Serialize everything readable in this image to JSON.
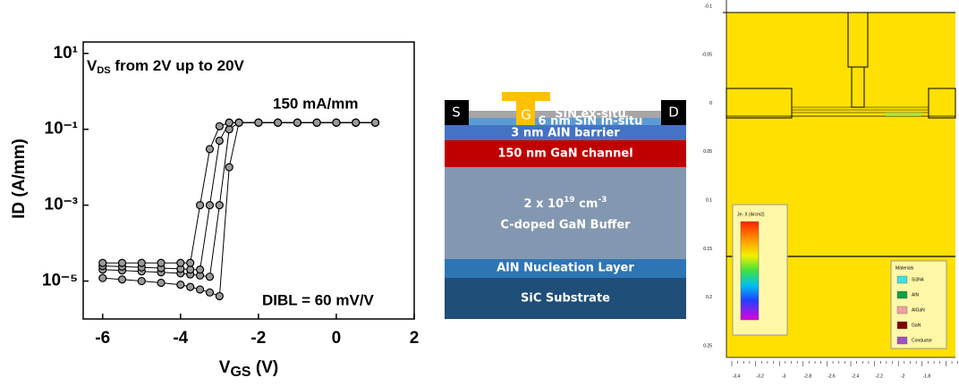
{
  "chart_data": {
    "type": "line",
    "log_y": true,
    "ylabel": "ID (A/mm)",
    "xlabel_parts": [
      "V",
      "GS",
      " (V)"
    ],
    "header_parts": [
      "V",
      "DS",
      " from 2V up to 20V"
    ],
    "annotations": [
      "150 mA/mm",
      "DIBL = 60 mV/V"
    ],
    "x": [
      -6,
      -5.5,
      -5,
      -4.5,
      -4,
      -3.75,
      -3.5,
      -3.25,
      -3,
      -2.75,
      -2.5,
      -2,
      -1.5,
      -1,
      -0.5,
      0,
      0.5,
      1
    ],
    "series": [
      {
        "color": "#000000",
        "values": [
          1.2e-05,
          1.1e-05,
          1e-05,
          9e-06,
          8e-06,
          7e-06,
          6e-06,
          5e-06,
          4e-06,
          0.01,
          0.15,
          0.15,
          0.15,
          0.15,
          0.15,
          0.15,
          0.15,
          0.15
        ]
      },
      {
        "color": "#000000",
        "values": [
          2e-05,
          1.9e-05,
          1.8e-05,
          1.7e-05,
          1.6e-05,
          1.5e-05,
          1.4e-05,
          1.3e-05,
          0.001,
          0.1,
          0.15,
          0.15,
          0.15,
          0.15,
          0.15,
          0.15,
          0.15,
          0.15
        ]
      },
      {
        "color": "#000000",
        "values": [
          2.5e-05,
          2.4e-05,
          2.3e-05,
          2.2e-05,
          2.1e-05,
          2e-05,
          2e-05,
          0.001,
          0.05,
          0.15,
          0.15,
          0.15,
          0.15,
          0.15,
          0.15,
          0.15,
          0.15,
          0.15
        ]
      },
      {
        "color": "#000000",
        "values": [
          3e-05,
          3e-05,
          3e-05,
          3e-05,
          3e-05,
          3e-05,
          0.001,
          0.03,
          0.12,
          0.15,
          0.15,
          0.15,
          0.15,
          0.15,
          0.15,
          0.15,
          0.15,
          0.15
        ]
      }
    ],
    "xlim": [
      -6.5,
      2
    ],
    "xticks": [
      -6,
      -4,
      -2,
      0,
      2
    ],
    "ylim": [
      1e-06,
      20
    ],
    "yticks": [
      {
        "value": 10,
        "label": "10¹"
      },
      {
        "value": 0.1,
        "label": "10⁻¹"
      },
      {
        "value": 0.001,
        "label": "10⁻³"
      },
      {
        "value": 1e-05,
        "label": "10⁻⁵"
      }
    ]
  },
  "diagram": {
    "contacts": [
      "S",
      "G",
      "D"
    ],
    "layers": [
      "SiN ex-situ",
      "6 nm SiN in-situ",
      "3 nm AlN barrier",
      "150 nm GaN channel",
      "C-doped GaN Buffer",
      "AlN Nucleation Layer",
      "SiC Substrate"
    ],
    "doping_parts": [
      "2 x 10",
      "19",
      " cm",
      "-3"
    ]
  },
  "simulation": {
    "yticks": [
      "-0.1",
      "-0.05",
      "0",
      "0.05",
      "0.1",
      "0.15",
      "0.2",
      "0.25"
    ],
    "xticks": [
      "-3.4",
      "-3.2",
      "-3",
      "-2.8",
      "-2.6",
      "-2.4",
      "-2.2",
      "-2",
      "-1.8"
    ],
    "colorbar_title": "Je- X (A/cm2)",
    "materials_title": "Materials",
    "materials": [
      "Si3N4",
      "AlN",
      "AlGaN",
      "GaN",
      "Conductor"
    ]
  }
}
